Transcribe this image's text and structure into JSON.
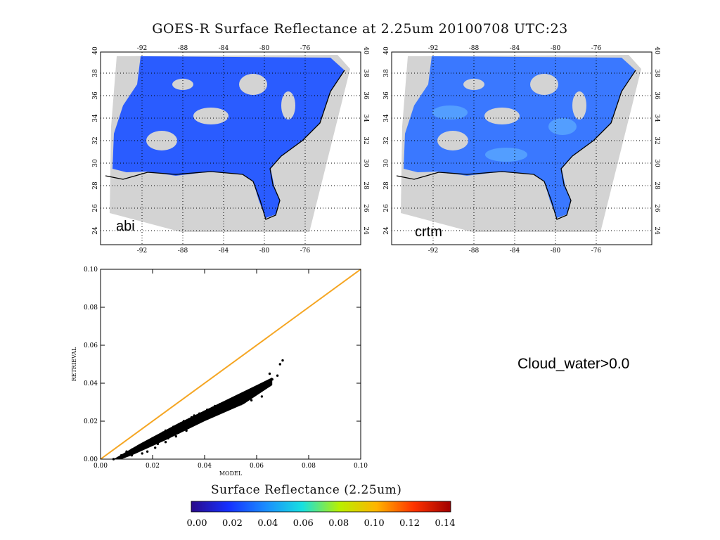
{
  "title": "GOES-R Surface Reflectance at 2.25um 20100708 UTC:23",
  "maps": [
    {
      "label": "abi",
      "lon_ticks": [
        "-92",
        "-88",
        "-84",
        "-80",
        "-76"
      ],
      "lat_ticks": [
        "24",
        "26",
        "28",
        "30",
        "32",
        "34",
        "36",
        "38",
        "40"
      ]
    },
    {
      "label": "crtm",
      "lon_ticks": [
        "-92",
        "-88",
        "-84",
        "-80",
        "-76"
      ],
      "lat_ticks": [
        "24",
        "26",
        "28",
        "30",
        "32",
        "34",
        "36",
        "38",
        "40"
      ]
    }
  ],
  "condition_text": "Cloud_water>0.0",
  "colorbar": {
    "title": "Surface Reflectance (2.25um)",
    "ticks": [
      "0.00",
      "0.02",
      "0.04",
      "0.06",
      "0.08",
      "0.10",
      "0.12",
      "0.14"
    ],
    "colors": [
      "#2a0a8a",
      "#1530ff",
      "#1a8cff",
      "#16e0e0",
      "#b8f000",
      "#ffb400",
      "#ff3300",
      "#a00000"
    ]
  },
  "colors": {
    "one_to_one_line": "#f5a623",
    "points": "#000000",
    "map_gray": "#d3d3d3",
    "map_blue": "#2a5cff"
  },
  "chart_data": {
    "type": "scatter",
    "xlabel": "MODEL",
    "ylabel": "RETRIEVAL",
    "xlim": [
      0,
      0.1
    ],
    "ylim": [
      0,
      0.1
    ],
    "x_ticks": [
      "0.00",
      "0.02",
      "0.04",
      "0.06",
      "0.08",
      "0.10"
    ],
    "y_ticks": [
      "0.00",
      "0.02",
      "0.04",
      "0.06",
      "0.08",
      "0.10"
    ],
    "reference_line": {
      "x": [
        0,
        0.1
      ],
      "y": [
        0,
        0.1
      ]
    },
    "points": [
      [
        0.005,
        0.0
      ],
      [
        0.008,
        0.002
      ],
      [
        0.01,
        0.004
      ],
      [
        0.012,
        0.005
      ],
      [
        0.014,
        0.006
      ],
      [
        0.015,
        0.007
      ],
      [
        0.017,
        0.008
      ],
      [
        0.018,
        0.009
      ],
      [
        0.019,
        0.01
      ],
      [
        0.02,
        0.011
      ],
      [
        0.022,
        0.012
      ],
      [
        0.023,
        0.013
      ],
      [
        0.024,
        0.014
      ],
      [
        0.025,
        0.015
      ],
      [
        0.027,
        0.016
      ],
      [
        0.028,
        0.017
      ],
      [
        0.03,
        0.018
      ],
      [
        0.031,
        0.019
      ],
      [
        0.032,
        0.02
      ],
      [
        0.034,
        0.021
      ],
      [
        0.035,
        0.022
      ],
      [
        0.036,
        0.023
      ],
      [
        0.038,
        0.024
      ],
      [
        0.04,
        0.025
      ],
      [
        0.041,
        0.026
      ],
      [
        0.043,
        0.027
      ],
      [
        0.044,
        0.028
      ],
      [
        0.046,
        0.029
      ],
      [
        0.048,
        0.03
      ],
      [
        0.05,
        0.031
      ],
      [
        0.052,
        0.032
      ],
      [
        0.054,
        0.034
      ],
      [
        0.056,
        0.035
      ],
      [
        0.058,
        0.036
      ],
      [
        0.06,
        0.037
      ],
      [
        0.062,
        0.039
      ],
      [
        0.064,
        0.04
      ],
      [
        0.066,
        0.042
      ],
      [
        0.068,
        0.044
      ],
      [
        0.07,
        0.052
      ],
      [
        0.069,
        0.05
      ],
      [
        0.065,
        0.045
      ],
      [
        0.018,
        0.004
      ],
      [
        0.022,
        0.008
      ],
      [
        0.026,
        0.011
      ],
      [
        0.03,
        0.014
      ],
      [
        0.034,
        0.017
      ],
      [
        0.038,
        0.02
      ],
      [
        0.042,
        0.023
      ],
      [
        0.046,
        0.025
      ],
      [
        0.05,
        0.027
      ],
      [
        0.054,
        0.029
      ],
      [
        0.058,
        0.031
      ],
      [
        0.062,
        0.033
      ],
      [
        0.012,
        0.002
      ],
      [
        0.016,
        0.003
      ],
      [
        0.021,
        0.006
      ],
      [
        0.025,
        0.009
      ],
      [
        0.029,
        0.012
      ],
      [
        0.033,
        0.015
      ]
    ]
  }
}
